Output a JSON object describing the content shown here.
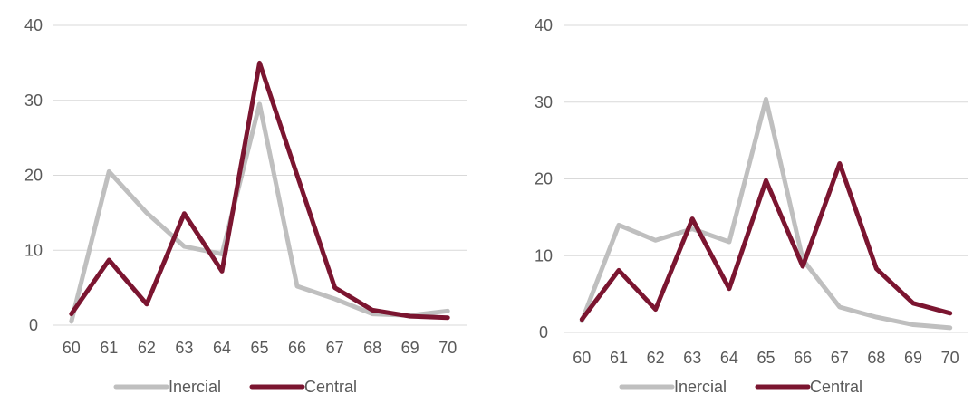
{
  "colors": {
    "inercial": "#bfbfbf",
    "central": "#7b1530",
    "grid": "#d9d9d9",
    "text": "#595959"
  },
  "chart_data": [
    {
      "type": "line",
      "x": [
        60,
        61,
        62,
        63,
        64,
        65,
        66,
        67,
        68,
        69,
        70
      ],
      "categories": [
        "60",
        "61",
        "62",
        "63",
        "64",
        "65",
        "66",
        "67",
        "68",
        "69",
        "70"
      ],
      "series": [
        {
          "name": "Inercial",
          "color": "#bfbfbf",
          "values": [
            0.5,
            20.5,
            15,
            10.5,
            9.5,
            29.5,
            5.2,
            3.5,
            1.5,
            1.3,
            1.9
          ]
        },
        {
          "name": "Central",
          "color": "#7b1530",
          "values": [
            1.5,
            8.7,
            2.8,
            14.9,
            7.2,
            35,
            20,
            5,
            2,
            1.2,
            1
          ]
        }
      ],
      "yticks": [
        "0",
        "10",
        "20",
        "30",
        "40"
      ],
      "ylim": [
        0,
        40
      ],
      "grid": true,
      "legend": "bottom",
      "title": "",
      "xlabel": "",
      "ylabel": ""
    },
    {
      "type": "line",
      "x": [
        60,
        61,
        62,
        63,
        64,
        65,
        66,
        67,
        68,
        69,
        70
      ],
      "categories": [
        "60",
        "61",
        "62",
        "63",
        "64",
        "65",
        "66",
        "67",
        "68",
        "69",
        "70"
      ],
      "series": [
        {
          "name": "Inercial",
          "color": "#bfbfbf",
          "values": [
            1.5,
            14,
            12,
            13.5,
            11.8,
            30.4,
            9.5,
            3.3,
            2,
            1,
            0.6
          ]
        },
        {
          "name": "Central",
          "color": "#7b1530",
          "values": [
            1.7,
            8.1,
            3,
            14.8,
            5.7,
            19.8,
            8.6,
            22,
            8.3,
            3.8,
            2.5
          ]
        }
      ],
      "yticks": [
        "0",
        "10",
        "20",
        "30",
        "40"
      ],
      "ylim": [
        0,
        40
      ],
      "grid": true,
      "legend": "bottom",
      "title": "",
      "xlabel": "",
      "ylabel": ""
    }
  ]
}
